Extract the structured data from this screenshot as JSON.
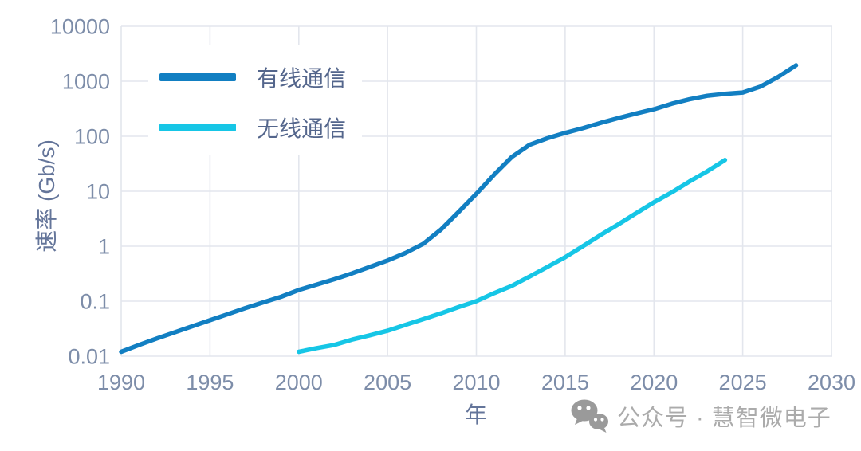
{
  "chart_data": {
    "type": "line",
    "title": "",
    "xlabel": "年",
    "ylabel": "速率 (Gb/s)",
    "x_scale": "linear",
    "y_scale": "log",
    "xlim": [
      1990,
      2030
    ],
    "ylim": [
      0.01,
      10000
    ],
    "x_ticks": [
      1990,
      1995,
      2000,
      2005,
      2010,
      2015,
      2020,
      2025,
      2030
    ],
    "y_ticks": [
      10000,
      1000,
      100,
      10,
      1,
      0.1,
      0.01
    ],
    "grid": true,
    "legend_position": "upper-left",
    "series": [
      {
        "name": "有线通信",
        "color": "#127fc2",
        "x": [
          1990,
          1991,
          1992,
          1993,
          1994,
          1995,
          1996,
          1997,
          1998,
          1999,
          2000,
          2001,
          2002,
          2003,
          2004,
          2005,
          2006,
          2007,
          2008,
          2009,
          2010,
          2011,
          2012,
          2013,
          2014,
          2015,
          2016,
          2017,
          2018,
          2019,
          2020,
          2021,
          2022,
          2023,
          2024,
          2025,
          2026,
          2027,
          2028
        ],
        "values": [
          0.012,
          0.016,
          0.021,
          0.027,
          0.035,
          0.045,
          0.058,
          0.075,
          0.095,
          0.12,
          0.16,
          0.2,
          0.25,
          0.32,
          0.42,
          0.55,
          0.75,
          1.1,
          2.0,
          4.2,
          9,
          20,
          42,
          70,
          92,
          115,
          140,
          175,
          215,
          260,
          310,
          390,
          470,
          545,
          590,
          625,
          800,
          1200,
          1950
        ]
      },
      {
        "name": "无线通信",
        "color": "#16c6e6",
        "x": [
          2000,
          2001,
          2002,
          2003,
          2004,
          2005,
          2006,
          2007,
          2008,
          2009,
          2010,
          2011,
          2012,
          2013,
          2014,
          2015,
          2016,
          2017,
          2018,
          2019,
          2020,
          2021,
          2022,
          2023,
          2024
        ],
        "values": [
          0.012,
          0.014,
          0.016,
          0.02,
          0.024,
          0.029,
          0.037,
          0.047,
          0.06,
          0.078,
          0.1,
          0.14,
          0.19,
          0.28,
          0.42,
          0.63,
          1.0,
          1.6,
          2.5,
          4.0,
          6.3,
          9.5,
          15,
          23,
          37
        ]
      }
    ]
  },
  "watermark": {
    "icon": "wechat-icon",
    "text": "公众号 · 慧智微电子"
  },
  "colors": {
    "grid": "#e3e6ed",
    "tick_label": "#7d8da9",
    "axis_title": "#64759a",
    "legend_text": "#54668c",
    "watermark": "#ababab",
    "wechat_icon": "#9a9a9a",
    "background": "#ffffff"
  }
}
